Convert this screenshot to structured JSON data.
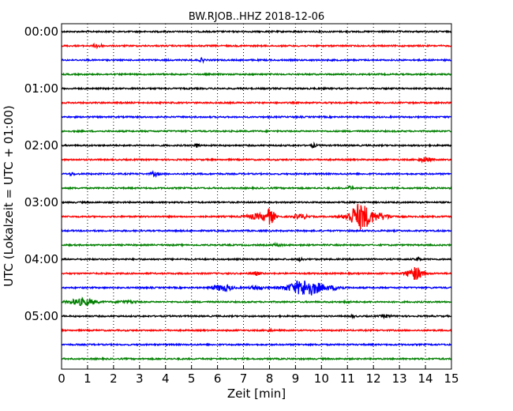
{
  "chart_data": {
    "type": "line",
    "title": "BW.RJOB..HHZ 2018-12-06",
    "xlabel": "Zeit  [min]",
    "ylabel": "UTC (Lokalzeit = UTC + 01:00)",
    "xlim": [
      0,
      15
    ],
    "xticks": [
      "0",
      "1",
      "2",
      "3",
      "4",
      "5",
      "6",
      "7",
      "8",
      "9",
      "10",
      "11",
      "12",
      "13",
      "14",
      "15"
    ],
    "yticks": [
      "00:00",
      "01:00",
      "02:00",
      "03:00",
      "04:00",
      "05:00"
    ],
    "grid": "vertical dotted",
    "trace_colors": [
      "#000000",
      "#ff0000",
      "#0000ff",
      "#008000"
    ],
    "traces": [
      {
        "start": "00:00",
        "color": "#000000",
        "events": []
      },
      {
        "start": "00:15",
        "color": "#ff0000",
        "events": [
          {
            "t": 1.4,
            "amp": 2.5,
            "dur": 0.3
          }
        ]
      },
      {
        "start": "00:30",
        "color": "#0000ff",
        "events": [
          {
            "t": 5.4,
            "amp": 2,
            "dur": 0.2
          }
        ]
      },
      {
        "start": "00:45",
        "color": "#008000",
        "events": []
      },
      {
        "start": "01:00",
        "color": "#000000",
        "events": []
      },
      {
        "start": "01:15",
        "color": "#ff0000",
        "events": []
      },
      {
        "start": "01:30",
        "color": "#0000ff",
        "events": []
      },
      {
        "start": "01:45",
        "color": "#008000",
        "events": []
      },
      {
        "start": "02:00",
        "color": "#000000",
        "events": [
          {
            "t": 5.2,
            "amp": 2.5,
            "dur": 0.2
          },
          {
            "t": 9.7,
            "amp": 2,
            "dur": 0.2
          }
        ]
      },
      {
        "start": "02:15",
        "color": "#ff0000",
        "events": [
          {
            "t": 14.0,
            "amp": 3,
            "dur": 0.4
          }
        ]
      },
      {
        "start": "02:30",
        "color": "#0000ff",
        "events": [
          {
            "t": 0.4,
            "amp": 1.5,
            "dur": 0.2
          },
          {
            "t": 3.6,
            "amp": 2.5,
            "dur": 0.3
          }
        ]
      },
      {
        "start": "02:45",
        "color": "#008000",
        "events": [
          {
            "t": 11.1,
            "amp": 2,
            "dur": 0.2
          }
        ]
      },
      {
        "start": "03:00",
        "color": "#000000",
        "events": []
      },
      {
        "start": "03:15",
        "color": "#ff0000",
        "events": [
          {
            "t": 7.5,
            "amp": 3,
            "dur": 0.9
          },
          {
            "t": 8.0,
            "amp": 9,
            "dur": 0.4
          },
          {
            "t": 9.2,
            "amp": 3,
            "dur": 0.5
          },
          {
            "t": 11.5,
            "amp": 16,
            "dur": 0.9
          },
          {
            "t": 12.3,
            "amp": 3,
            "dur": 0.8
          }
        ]
      },
      {
        "start": "03:30",
        "color": "#0000ff",
        "events": []
      },
      {
        "start": "03:45",
        "color": "#008000",
        "events": [
          {
            "t": 8.3,
            "amp": 1.5,
            "dur": 0.3
          }
        ]
      },
      {
        "start": "04:00",
        "color": "#000000",
        "events": [
          {
            "t": 9.2,
            "amp": 2,
            "dur": 0.2
          },
          {
            "t": 13.7,
            "amp": 2,
            "dur": 0.2
          }
        ]
      },
      {
        "start": "04:15",
        "color": "#ff0000",
        "events": [
          {
            "t": 7.5,
            "amp": 2,
            "dur": 0.3
          },
          {
            "t": 13.6,
            "amp": 8,
            "dur": 0.6
          }
        ]
      },
      {
        "start": "04:30",
        "color": "#0000ff",
        "events": [
          {
            "t": 6.2,
            "amp": 4,
            "dur": 0.7
          },
          {
            "t": 7.5,
            "amp": 2,
            "dur": 0.5
          },
          {
            "t": 9.4,
            "amp": 10,
            "dur": 1.3
          },
          {
            "t": 10.6,
            "amp": 2,
            "dur": 0.5
          }
        ]
      },
      {
        "start": "04:45",
        "color": "#008000",
        "events": [
          {
            "t": 0.8,
            "amp": 4,
            "dur": 1.0
          },
          {
            "t": 2.5,
            "amp": 1.5,
            "dur": 0.8
          },
          {
            "t": 11.0,
            "amp": 1.5,
            "dur": 0.2
          }
        ]
      },
      {
        "start": "05:00",
        "color": "#000000",
        "events": [
          {
            "t": 11.2,
            "amp": 1.5,
            "dur": 0.2
          },
          {
            "t": 12.5,
            "amp": 1.5,
            "dur": 0.4
          }
        ]
      },
      {
        "start": "05:15",
        "color": "#ff0000",
        "events": [
          {
            "t": 8.0,
            "amp": 1.5,
            "dur": 0.2
          }
        ]
      },
      {
        "start": "05:30",
        "color": "#0000ff",
        "events": []
      },
      {
        "start": "05:45",
        "color": "#008000",
        "events": []
      }
    ]
  }
}
